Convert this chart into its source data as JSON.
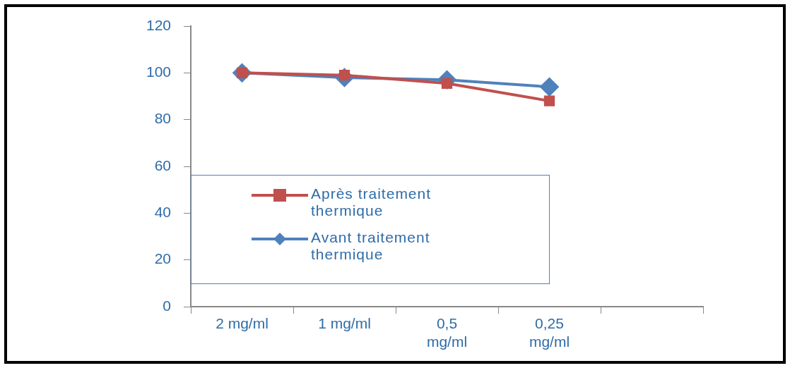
{
  "chart_data": {
    "type": "line",
    "categories": [
      "2 mg/ml",
      "1 mg/ml",
      "0,5 mg/ml",
      "0,25 mg/ml",
      null
    ],
    "series": [
      {
        "name": "Après traitement thermique",
        "color": "#c0504d",
        "marker": "square",
        "values": [
          100,
          99,
          95.5,
          88,
          null
        ]
      },
      {
        "name": "Avant traitement thermique",
        "color": "#4f81bd",
        "marker": "diamond",
        "values": [
          100,
          98,
          97,
          94,
          null
        ]
      }
    ],
    "ylim": [
      0,
      120
    ],
    "yticks": [
      0,
      20,
      40,
      60,
      80,
      100,
      120
    ],
    "grid": false,
    "legend": "left"
  }
}
